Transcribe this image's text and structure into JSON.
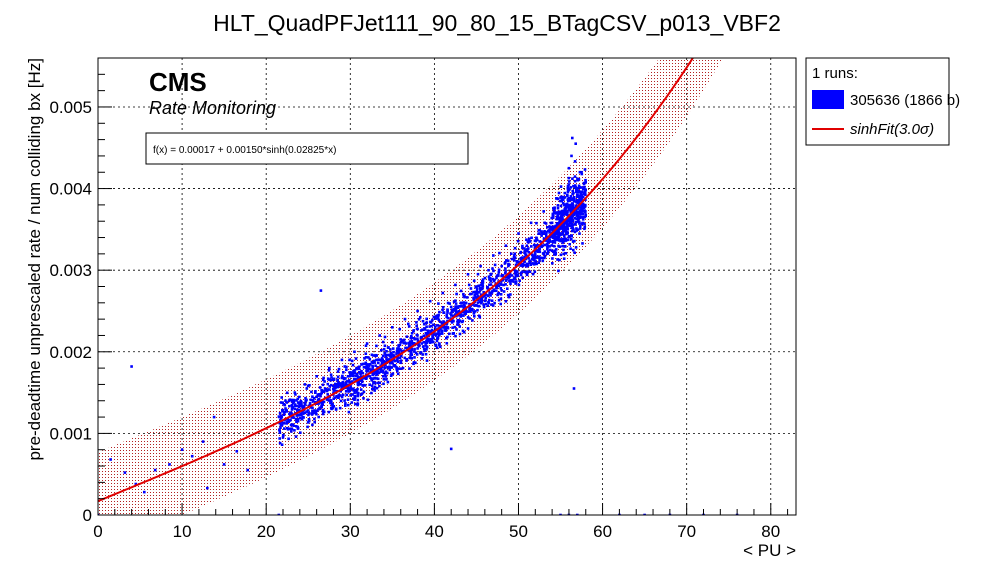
{
  "chart_data": {
    "type": "scatter",
    "title": "HLT_QuadPFJet111_90_80_15_BTagCSV_p013_VBF2",
    "xlabel": "< PU >",
    "ylabel": "pre-deadtime unprescaled rate / num colliding bx [Hz]",
    "xlim": [
      0,
      83
    ],
    "ylim": [
      0,
      0.0056
    ],
    "x_ticks": [
      "0",
      "10",
      "20",
      "30",
      "40",
      "50",
      "60",
      "70",
      "80"
    ],
    "x_tick_values": [
      0,
      10,
      20,
      30,
      40,
      50,
      60,
      70,
      80
    ],
    "y_ticks": [
      "0",
      "0.001",
      "0.002",
      "0.003",
      "0.004",
      "0.005"
    ],
    "y_tick_values": [
      0,
      0.001,
      0.002,
      0.003,
      0.004,
      0.005
    ],
    "grid": true,
    "cms_label": "CMS",
    "cms_sublabel": "Rate Monitoring",
    "fit_formula": "f(x) = 0.00017 + 0.00150*sinh(0.02825*x)",
    "fit": {
      "a": 0.00017,
      "b": 0.0015,
      "c": 0.02825,
      "band_sigma": 3.0,
      "band_halfwidth": 0.0006
    },
    "legend": {
      "header": "1 runs:",
      "entries": [
        {
          "label": "305636 (1866 b)",
          "kind": "marker",
          "color": "#0000ff"
        },
        {
          "label": "sinhFit(3.0σ)",
          "kind": "line",
          "color": "#e00000"
        }
      ],
      "placement": "outside-right-top"
    },
    "series": [
      {
        "name": "305636 (1866 b)",
        "color": "#0000ff",
        "points": [
          [
            1.5,
            0.00068
          ],
          [
            3.2,
            0.00052
          ],
          [
            4.0,
            0.00182
          ],
          [
            4.5,
            0.00038
          ],
          [
            5.5,
            0.00028
          ],
          [
            6.8,
            0.00055
          ],
          [
            8.5,
            0.00062
          ],
          [
            10.0,
            0.0008
          ],
          [
            11.2,
            0.00072
          ],
          [
            12.5,
            0.0009
          ],
          [
            13.0,
            0.00033
          ],
          [
            15.0,
            0.00062
          ],
          [
            16.5,
            0.00078
          ],
          [
            17.8,
            0.00055
          ],
          [
            13.8,
            0.0012
          ],
          [
            26.5,
            0.00275
          ],
          [
            42.0,
            0.00081
          ],
          [
            56.6,
            0.00155
          ],
          [
            21.8,
            0.0012
          ],
          [
            22.0,
            0.00095
          ],
          [
            22.3,
            0.0014
          ],
          [
            22.6,
            0.00105
          ],
          [
            23.0,
            0.00125
          ],
          [
            23.4,
            0.0015
          ],
          [
            23.8,
            0.00115
          ],
          [
            24.2,
            0.00135
          ],
          [
            24.6,
            0.0016
          ],
          [
            25.0,
            0.00128
          ],
          [
            25.5,
            0.00145
          ],
          [
            26.0,
            0.0017
          ],
          [
            26.5,
            0.00138
          ],
          [
            27.0,
            0.00155
          ],
          [
            27.5,
            0.0018
          ],
          [
            28.0,
            0.0015
          ],
          [
            28.5,
            0.00165
          ],
          [
            29.0,
            0.0019
          ],
          [
            29.5,
            0.00158
          ],
          [
            30.0,
            0.00172
          ],
          [
            30.5,
            0.002
          ],
          [
            31.0,
            0.00168
          ],
          [
            31.5,
            0.00185
          ],
          [
            32.0,
            0.0021
          ],
          [
            32.5,
            0.00178
          ],
          [
            33.0,
            0.00195
          ],
          [
            33.5,
            0.0022
          ],
          [
            34.0,
            0.00188
          ],
          [
            34.5,
            0.00205
          ],
          [
            35.0,
            0.0023
          ],
          [
            35.5,
            0.00198
          ],
          [
            36.0,
            0.00215
          ],
          [
            36.5,
            0.0024
          ],
          [
            37.0,
            0.00205
          ],
          [
            37.5,
            0.00225
          ],
          [
            38.0,
            0.0025
          ],
          [
            38.5,
            0.00215
          ],
          [
            39.0,
            0.00235
          ],
          [
            39.5,
            0.00262
          ],
          [
            40.0,
            0.00225
          ],
          [
            40.5,
            0.00245
          ],
          [
            41.0,
            0.00272
          ],
          [
            41.5,
            0.00235
          ],
          [
            42.0,
            0.00255
          ],
          [
            42.5,
            0.00282
          ],
          [
            43.0,
            0.00245
          ],
          [
            43.5,
            0.00268
          ],
          [
            44.0,
            0.00295
          ],
          [
            44.5,
            0.00258
          ],
          [
            45.0,
            0.0028
          ],
          [
            45.5,
            0.00305
          ],
          [
            46.0,
            0.0027
          ],
          [
            46.5,
            0.00292
          ],
          [
            47.0,
            0.00318
          ],
          [
            47.5,
            0.00282
          ],
          [
            48.0,
            0.00305
          ],
          [
            48.5,
            0.0033
          ],
          [
            49.0,
            0.00295
          ],
          [
            49.5,
            0.00318
          ],
          [
            50.0,
            0.00345
          ],
          [
            50.5,
            0.00305
          ],
          [
            51.0,
            0.0033
          ],
          [
            51.5,
            0.00358
          ],
          [
            52.0,
            0.00318
          ],
          [
            52.5,
            0.00345
          ],
          [
            53.0,
            0.00372
          ],
          [
            53.5,
            0.0033
          ],
          [
            54.0,
            0.00358
          ],
          [
            54.5,
            0.00388
          ],
          [
            55.0,
            0.00345
          ],
          [
            55.5,
            0.00375
          ],
          [
            56.0,
            0.00405
          ],
          [
            56.3,
            0.0044
          ],
          [
            56.5,
            0.00335
          ],
          [
            56.8,
            0.00455
          ],
          [
            57.0,
            0.0039
          ],
          [
            57.3,
            0.0042
          ],
          [
            57.6,
            0.00365
          ],
          [
            57.9,
            0.00395
          ],
          [
            56.4,
            0.00462
          ],
          [
            0.0,
            0.0
          ],
          [
            21.5,
            0.0
          ],
          [
            55.0,
            0.0
          ],
          [
            56.0,
            0.0
          ],
          [
            57.0,
            0.0
          ],
          [
            62.0,
            0.0
          ],
          [
            65.0,
            0.0
          ],
          [
            68.0,
            0.0
          ],
          [
            72.0,
            0.0
          ],
          [
            76.0,
            0.0
          ]
        ]
      }
    ],
    "dense_regions": [
      {
        "x": [
          21.5,
          57.5
        ],
        "spread": 0.00045
      },
      {
        "x": [
          54.0,
          58.0
        ],
        "spread": 0.00075
      }
    ]
  }
}
